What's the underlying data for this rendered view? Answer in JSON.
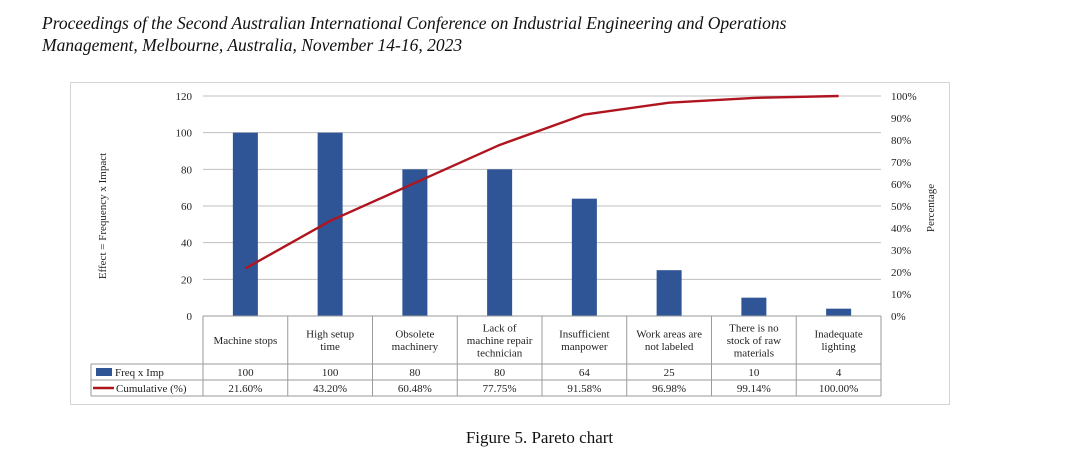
{
  "header": {
    "line1": "Proceedings of the Second Australian International Conference on Industrial Engineering and Operations",
    "line2": "Management, Melbourne, Australia, November 14-16, 2023"
  },
  "caption": "Figure 5. Pareto chart",
  "colors": {
    "bar": "#2f5597",
    "line": "#b0151f",
    "grid": "#bfbfbf"
  },
  "chart_data": {
    "type": "bar",
    "title": "",
    "categories": [
      [
        "Machine stops"
      ],
      [
        "High setup",
        "time"
      ],
      [
        "Obsolete",
        "machinery"
      ],
      [
        "Lack of",
        "machine repair",
        "technician"
      ],
      [
        "Insufficient",
        "manpower"
      ],
      [
        "Work areas are",
        "not labeled"
      ],
      [
        "There is no",
        "stock of raw",
        "materials"
      ],
      [
        "Inadequate",
        "lighting"
      ]
    ],
    "series": [
      {
        "name": "Freq x Imp",
        "type": "bar",
        "axis": "left",
        "values": [
          100,
          100,
          80,
          80,
          64,
          25,
          10,
          4
        ],
        "labels": [
          "100",
          "100",
          "80",
          "80",
          "64",
          "25",
          "10",
          "4"
        ]
      },
      {
        "name": "Cumulative (%)",
        "type": "line",
        "axis": "right",
        "values": [
          21.6,
          43.2,
          60.48,
          77.75,
          91.58,
          96.98,
          99.14,
          100.0
        ],
        "labels": [
          "21.60%",
          "43.20%",
          "60.48%",
          "77.75%",
          "91.58%",
          "96.98%",
          "99.14%",
          "100.00%"
        ]
      }
    ],
    "ylabel": "Effect = Frequency x Impact",
    "y2label": "Percentage",
    "ylim": [
      0,
      120
    ],
    "y2lim": [
      0,
      100
    ],
    "yticks": [
      "0",
      "20",
      "40",
      "60",
      "80",
      "100",
      "120"
    ],
    "y2ticks": [
      "0%",
      "10%",
      "20%",
      "30%",
      "40%",
      "50%",
      "60%",
      "70%",
      "80%",
      "90%",
      "100%"
    ],
    "legend_position": "data-table"
  }
}
